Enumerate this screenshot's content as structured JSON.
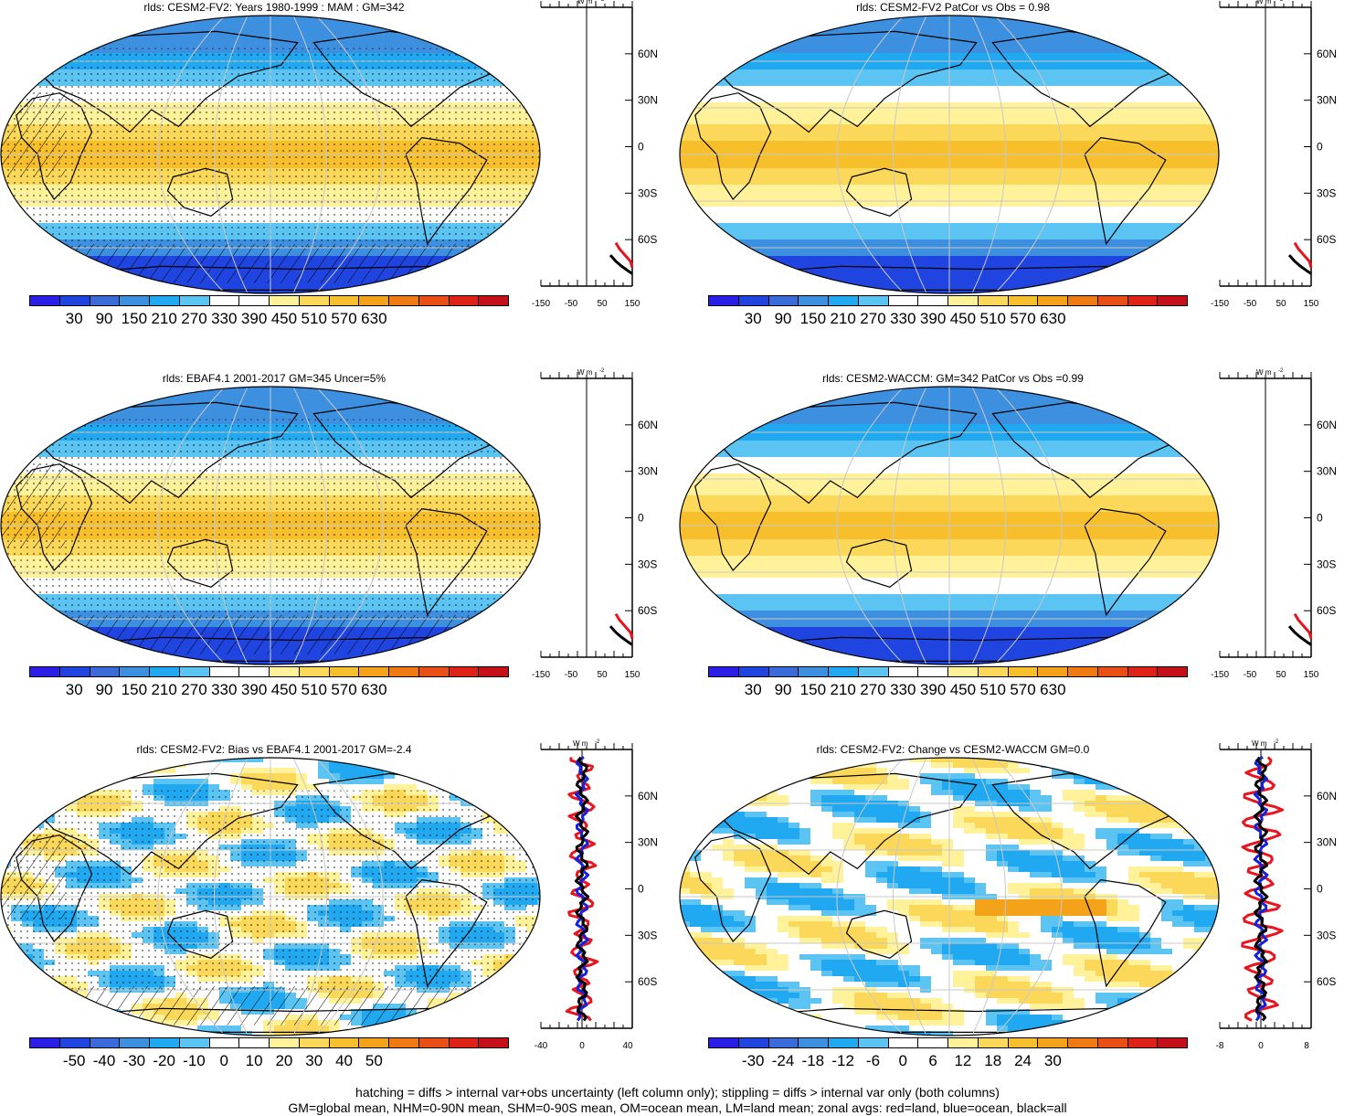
{
  "panels": [
    {
      "id": "p1",
      "title": "rlds: CESM2-FV2: Years 1980-1999 : MAM : GM=342",
      "colorbar": [
        "30",
        "90",
        "150",
        "210",
        "270",
        "330",
        "390",
        "450",
        "510",
        "570",
        "630"
      ],
      "zonal_ticks": [
        "-150",
        "-50",
        "50",
        "150"
      ],
      "variable": "rlds",
      "units": "W m-2",
      "stippling": true,
      "hatching": true,
      "zonal_series": [
        {
          "name": "land",
          "color": "#e8141e",
          "profile": "abs"
        },
        {
          "name": "all",
          "color": "#000000",
          "profile": "abs"
        }
      ]
    },
    {
      "id": "p2",
      "title": "rlds: CESM2-FV2 PatCor vs Obs = 0.98",
      "colorbar": [
        "30",
        "90",
        "150",
        "210",
        "270",
        "330",
        "390",
        "450",
        "510",
        "570",
        "630"
      ],
      "zonal_ticks": [
        "-150",
        "-50",
        "50",
        "150"
      ],
      "variable": "rlds",
      "units": "W m-2",
      "stippling": false,
      "hatching": false,
      "zonal_series": [
        {
          "name": "land",
          "color": "#e8141e",
          "profile": "abs"
        },
        {
          "name": "all",
          "color": "#000000",
          "profile": "abs"
        }
      ]
    },
    {
      "id": "p3",
      "title": "rlds: EBAF4.1 2001-2017 GM=345 Uncer=5%",
      "colorbar": [
        "30",
        "90",
        "150",
        "210",
        "270",
        "330",
        "390",
        "450",
        "510",
        "570",
        "630"
      ],
      "zonal_ticks": [
        "-150",
        "-50",
        "50",
        "150"
      ],
      "variable": "rlds",
      "units": "W m-2",
      "stippling": true,
      "hatching": true,
      "zonal_series": [
        {
          "name": "land",
          "color": "#e8141e",
          "profile": "abs"
        },
        {
          "name": "all",
          "color": "#000000",
          "profile": "abs"
        }
      ]
    },
    {
      "id": "p4",
      "title": "rlds: CESM2-WACCM: GM=342 PatCor vs Obs =0.99",
      "colorbar": [
        "30",
        "90",
        "150",
        "210",
        "270",
        "330",
        "390",
        "450",
        "510",
        "570",
        "630"
      ],
      "zonal_ticks": [
        "-150",
        "-50",
        "50",
        "150"
      ],
      "variable": "rlds",
      "units": "W m-2",
      "stippling": false,
      "hatching": false,
      "zonal_series": [
        {
          "name": "land",
          "color": "#e8141e",
          "profile": "abs"
        },
        {
          "name": "all",
          "color": "#000000",
          "profile": "abs"
        }
      ]
    },
    {
      "id": "p5",
      "title": "rlds: CESM2-FV2: Bias vs EBAF4.1 2001-2017 GM=-2.4",
      "colorbar": [
        "-50",
        "-40",
        "-30",
        "-20",
        "-10",
        "0",
        "10",
        "20",
        "30",
        "40",
        "50"
      ],
      "zonal_ticks": [
        "-40",
        "0",
        "40"
      ],
      "variable": "rlds",
      "units": "W m-2",
      "stippling": true,
      "hatching": true,
      "zonal_series": [
        {
          "name": "land",
          "color": "#e8141e",
          "profile": "bias"
        },
        {
          "name": "ocean",
          "color": "#1420e0",
          "profile": "bias"
        },
        {
          "name": "all",
          "color": "#000000",
          "profile": "bias"
        }
      ]
    },
    {
      "id": "p6",
      "title": "rlds: CESM2-FV2: Change vs CESM2-WACCM GM=0.0",
      "colorbar": [
        "-30",
        "-24",
        "-18",
        "-12",
        "-6",
        "0",
        "6",
        "12",
        "18",
        "24",
        "30"
      ],
      "zonal_ticks": [
        "-8",
        "0",
        "8"
      ],
      "variable": "rlds",
      "units": "W m-2",
      "stippling": false,
      "hatching": false,
      "zonal_series": [
        {
          "name": "land",
          "color": "#e8141e",
          "profile": "chg"
        },
        {
          "name": "ocean",
          "color": "#1420e0",
          "profile": "chg"
        },
        {
          "name": "all",
          "color": "#000000",
          "profile": "chg"
        }
      ]
    }
  ],
  "lat_labels": [
    "60N",
    "30N",
    "0",
    "30S",
    "60S"
  ],
  "units_label": "W m",
  "units_exp": "-2",
  "palette": [
    "#2b1ee6",
    "#2044e0",
    "#3b6bd9",
    "#3d8fe0",
    "#20a8f0",
    "#5cc4f2",
    "#ffffff",
    "#ffffff",
    "#fff29a",
    "#fbd85a",
    "#f7bf2c",
    "#f3a21a",
    "#ef7a14",
    "#e94e14",
    "#df2218",
    "#c5101a"
  ],
  "footer": [
    "hatching = diffs > internal var+obs uncertainty (left column only); stippling = diffs > internal var only (both columns)",
    "GM=global mean, NHM=0-90N mean, SHM=0-90S mean, OM=ocean mean, LM=land mean; zonal avgs: red=land, blue=ocean, black=all"
  ]
}
